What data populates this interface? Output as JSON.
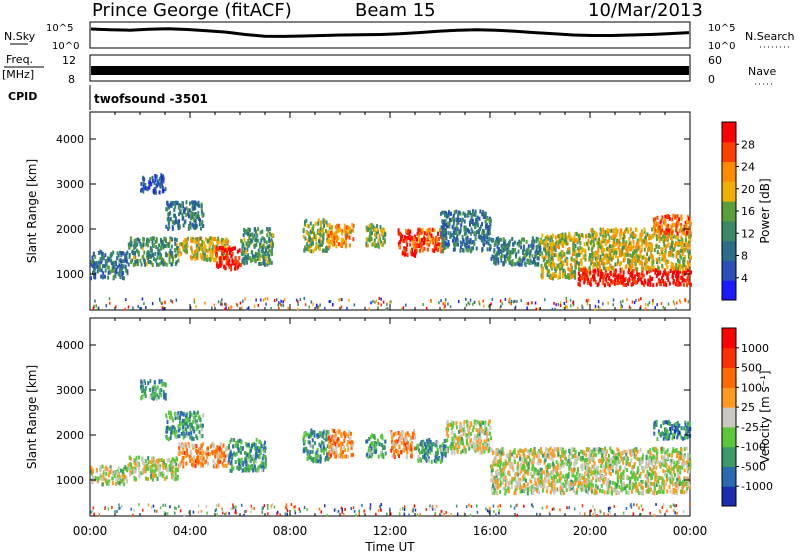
{
  "header": {
    "station": "Prince George (fitACF)",
    "beam": "Beam 15",
    "date": "10/Mar/2013"
  },
  "status_panels": {
    "nsky": {
      "label": "N.Sky",
      "ticks": [
        "10^5",
        "10^0"
      ],
      "right_label": "N.Search",
      "right_ticks": [
        "10^5",
        "10^0"
      ],
      "profile": [
        0.75,
        0.72,
        0.7,
        0.74,
        0.76,
        0.73,
        0.68,
        0.62,
        0.52,
        0.45,
        0.44,
        0.46,
        0.48,
        0.5,
        0.51,
        0.52,
        0.55,
        0.6,
        0.66,
        0.7,
        0.72,
        0.7,
        0.66,
        0.6,
        0.55,
        0.5,
        0.48,
        0.48,
        0.5,
        0.52,
        0.56,
        0.6
      ]
    },
    "freq": {
      "label_top": "Freq.",
      "label_unit": "[MHz]",
      "left_ticks": [
        "12",
        "8"
      ],
      "right_label": "Nave",
      "right_ticks": [
        "60",
        "0"
      ]
    },
    "cpid": {
      "label": "CPID",
      "program": "twofsound  -3501"
    }
  },
  "chart_data": [
    {
      "type": "heatmap",
      "name": "power",
      "ylabel": "Slant Range [km]",
      "y_ticks": [
        "4000",
        "3000",
        "2000",
        "1000"
      ],
      "ylim": [
        200,
        4600
      ],
      "colorbar": {
        "label": "Power [dB]",
        "ticks": [
          "28",
          "24",
          "20",
          "16",
          "12",
          "8",
          "4"
        ],
        "colors": [
          "#1a1aff",
          "#2a4fb8",
          "#2a6e8a",
          "#3a8a6a",
          "#5aa03a",
          "#f0b000",
          "#ff8c00",
          "#ff4000",
          "#ff0000"
        ]
      },
      "blobs": [
        {
          "t0": 0.0,
          "t1": 1.5,
          "r0": 900,
          "r1": 1500,
          "lvl": 0.3
        },
        {
          "t0": 1.5,
          "t1": 3.5,
          "r0": 1200,
          "r1": 1800,
          "lvl": 0.4
        },
        {
          "t0": 2.0,
          "t1": 3.0,
          "r0": 2800,
          "r1": 3200,
          "lvl": 0.2
        },
        {
          "t0": 3.0,
          "t1": 4.5,
          "r0": 2000,
          "r1": 2600,
          "lvl": 0.3
        },
        {
          "t0": 3.5,
          "t1": 5.5,
          "r0": 1300,
          "r1": 1800,
          "lvl": 0.6
        },
        {
          "t0": 5.0,
          "t1": 6.0,
          "r0": 1100,
          "r1": 1600,
          "lvl": 0.95
        },
        {
          "t0": 6.0,
          "t1": 7.3,
          "r0": 1200,
          "r1": 2000,
          "lvl": 0.4
        },
        {
          "t0": 8.5,
          "t1": 9.5,
          "r0": 1500,
          "r1": 2200,
          "lvl": 0.5
        },
        {
          "t0": 9.5,
          "t1": 10.5,
          "r0": 1600,
          "r1": 2100,
          "lvl": 0.7
        },
        {
          "t0": 11.0,
          "t1": 11.8,
          "r0": 1600,
          "r1": 2100,
          "lvl": 0.5
        },
        {
          "t0": 12.3,
          "t1": 13.0,
          "r0": 1400,
          "r1": 2000,
          "lvl": 0.9
        },
        {
          "t0": 13.0,
          "t1": 14.2,
          "r0": 1500,
          "r1": 2000,
          "lvl": 0.8
        },
        {
          "t0": 14.0,
          "t1": 16.0,
          "r0": 1500,
          "r1": 2400,
          "lvl": 0.3
        },
        {
          "t0": 16.0,
          "t1": 18.0,
          "r0": 1200,
          "r1": 1800,
          "lvl": 0.35
        },
        {
          "t0": 18.0,
          "t1": 20.0,
          "r0": 900,
          "r1": 1900,
          "lvl": 0.55
        },
        {
          "t0": 19.5,
          "t1": 24.0,
          "r0": 750,
          "r1": 1100,
          "lvl": 0.95
        },
        {
          "t0": 20.0,
          "t1": 24.0,
          "r0": 1100,
          "r1": 2000,
          "lvl": 0.6
        },
        {
          "t0": 22.5,
          "t1": 24.0,
          "r0": 1900,
          "r1": 2300,
          "lvl": 0.75
        }
      ]
    },
    {
      "type": "heatmap",
      "name": "velocity",
      "xlabel": "Time UT",
      "ylabel": "Slant Range [km]",
      "x_ticks": [
        "00:00",
        "04:00",
        "08:00",
        "12:00",
        "16:00",
        "20:00",
        "00:00"
      ],
      "y_ticks": [
        "4000",
        "3000",
        "2000",
        "1000"
      ],
      "ylim": [
        200,
        4600
      ],
      "colorbar": {
        "label": "Velocity [m s⁻¹]",
        "ticks": [
          "1000",
          "500",
          "100",
          "25",
          "-25",
          "-100",
          "-500",
          "-1000"
        ],
        "colors": [
          "#1a2fb0",
          "#2a6ab0",
          "#3a9a6a",
          "#5ac83a",
          "#c8c8c0",
          "#ff9a20",
          "#ff6a00",
          "#ff3000",
          "#ff0000"
        ]
      },
      "blobs": [
        {
          "t0": 0.0,
          "t1": 1.5,
          "r0": 900,
          "r1": 1300,
          "lvl": 0.48
        },
        {
          "t0": 1.5,
          "t1": 3.5,
          "r0": 1000,
          "r1": 1500,
          "lvl": 0.48
        },
        {
          "t0": 2.0,
          "t1": 3.0,
          "r0": 2800,
          "r1": 3200,
          "lvl": 0.3
        },
        {
          "t0": 3.0,
          "t1": 4.5,
          "r0": 1900,
          "r1": 2500,
          "lvl": 0.3
        },
        {
          "t0": 3.5,
          "t1": 5.5,
          "r0": 1300,
          "r1": 1800,
          "lvl": 0.62
        },
        {
          "t0": 5.5,
          "t1": 7.0,
          "r0": 1200,
          "r1": 1900,
          "lvl": 0.28
        },
        {
          "t0": 8.5,
          "t1": 9.5,
          "r0": 1400,
          "r1": 2100,
          "lvl": 0.3
        },
        {
          "t0": 9.5,
          "t1": 10.5,
          "r0": 1500,
          "r1": 2100,
          "lvl": 0.65
        },
        {
          "t0": 11.0,
          "t1": 11.8,
          "r0": 1500,
          "r1": 2000,
          "lvl": 0.3
        },
        {
          "t0": 12.0,
          "t1": 13.0,
          "r0": 1500,
          "r1": 2100,
          "lvl": 0.65
        },
        {
          "t0": 13.0,
          "t1": 14.2,
          "r0": 1400,
          "r1": 1900,
          "lvl": 0.3
        },
        {
          "t0": 14.2,
          "t1": 16.0,
          "r0": 1600,
          "r1": 2300,
          "lvl": 0.48
        },
        {
          "t0": 16.0,
          "t1": 24.0,
          "r0": 700,
          "r1": 1700,
          "lvl": 0.48
        },
        {
          "t0": 22.5,
          "t1": 24.0,
          "r0": 1900,
          "r1": 2300,
          "lvl": 0.25
        }
      ]
    }
  ]
}
